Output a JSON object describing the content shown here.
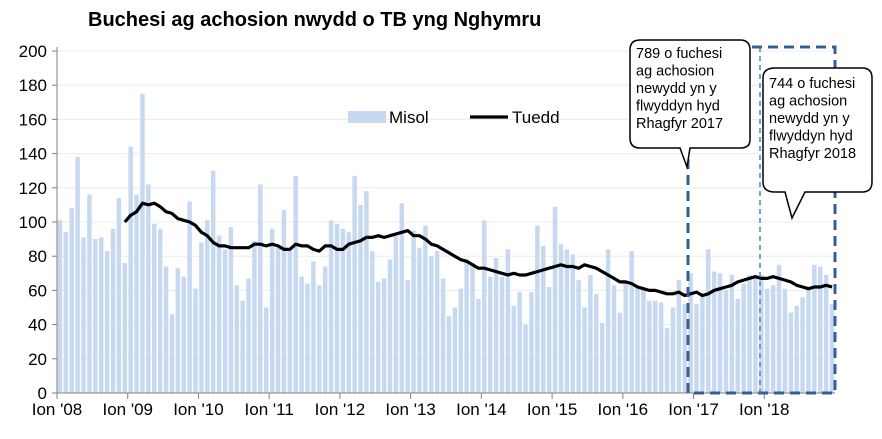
{
  "chart_data": {
    "type": "bar",
    "title": "Buchesi ag achosion nwydd o TB yng Nghymru",
    "xlabel": "",
    "ylabel": "",
    "ylim": [
      0,
      200
    ],
    "yticks": [
      0,
      20,
      40,
      60,
      80,
      100,
      120,
      140,
      160,
      180,
      200
    ],
    "xtick_labels": [
      "Ion '08",
      "Ion '09",
      "Ion '10",
      "Ion '11",
      "Ion '12",
      "Ion '13",
      "Ion '14",
      "Ion '15",
      "Ion '16",
      "Ion '17",
      "Ion '18"
    ],
    "x_range": [
      "2008-01",
      "2018-12"
    ],
    "grid": true,
    "legend_position": "top-center",
    "colors": {
      "bars": "#c6d9f1",
      "trend": "#000000",
      "highlight_box": "#365f91"
    },
    "series": [
      {
        "name": "Misol",
        "type": "bar",
        "start": "2008-01",
        "values": [
          101,
          94,
          108,
          138,
          91,
          116,
          90,
          91,
          83,
          96,
          114,
          76,
          144,
          116,
          175,
          122,
          99,
          96,
          74,
          46,
          73,
          68,
          112,
          61,
          88,
          101,
          130,
          92,
          84,
          97,
          63,
          54,
          67,
          89,
          122,
          50,
          96,
          85,
          107,
          83,
          127,
          68,
          64,
          77,
          63,
          74,
          101,
          99,
          96,
          94,
          127,
          110,
          118,
          83,
          65,
          67,
          78,
          93,
          111,
          66,
          95,
          85,
          98,
          80,
          83,
          67,
          45,
          50,
          61,
          78,
          76,
          55,
          101,
          68,
          79,
          68,
          84,
          51,
          59,
          40,
          59,
          98,
          86,
          62,
          109,
          87,
          84,
          81,
          66,
          50,
          69,
          58,
          41,
          84,
          63,
          47,
          65,
          83,
          62,
          60,
          54,
          54,
          53,
          38,
          50,
          66,
          52,
          70,
          52,
          57,
          84,
          71,
          70,
          60,
          69,
          55,
          64,
          69,
          69,
          69,
          61,
          63,
          75,
          61,
          47,
          51,
          56,
          60,
          75,
          74,
          69,
          52
        ]
      },
      {
        "name": "Tuedd",
        "type": "line",
        "start": "2008-12",
        "values": [
          100,
          104,
          106,
          111,
          110,
          111,
          109,
          106,
          105,
          102,
          101,
          100,
          98,
          94,
          92,
          88,
          86,
          86,
          85,
          85,
          85,
          85,
          87,
          87,
          86,
          87,
          86,
          84,
          84,
          87,
          86,
          86,
          84,
          83,
          86,
          86,
          84,
          84,
          87,
          88,
          89,
          91,
          91,
          92,
          91,
          92,
          93,
          94,
          95,
          92,
          92,
          90,
          87,
          86,
          84,
          82,
          80,
          78,
          77,
          75,
          73,
          73,
          72,
          71,
          70,
          69,
          70,
          69,
          69,
          70,
          71,
          72,
          73,
          74,
          75,
          74,
          74,
          73,
          75,
          74,
          73,
          71,
          69,
          67,
          65,
          65,
          64,
          62,
          61,
          60,
          60,
          59,
          58,
          58,
          59,
          57,
          58,
          59,
          57,
          58,
          60,
          61,
          62,
          63,
          65,
          66,
          67,
          68,
          67,
          67,
          68,
          67,
          66,
          65,
          63,
          62,
          61,
          62,
          62,
          63,
          62
        ]
      }
    ],
    "annotations": [
      {
        "lines": [
          "789 o fuchesi",
          "ag achosion",
          "newydd yn y",
          "flwyddyn hyd",
          "Rhagfyr 2017"
        ],
        "period": "2017"
      },
      {
        "lines": [
          "744 o fuchesi",
          "ag achosion",
          "newydd yn y",
          "flwyddyn hyd",
          "Rhagfyr 2018"
        ],
        "period": "2018"
      }
    ]
  }
}
